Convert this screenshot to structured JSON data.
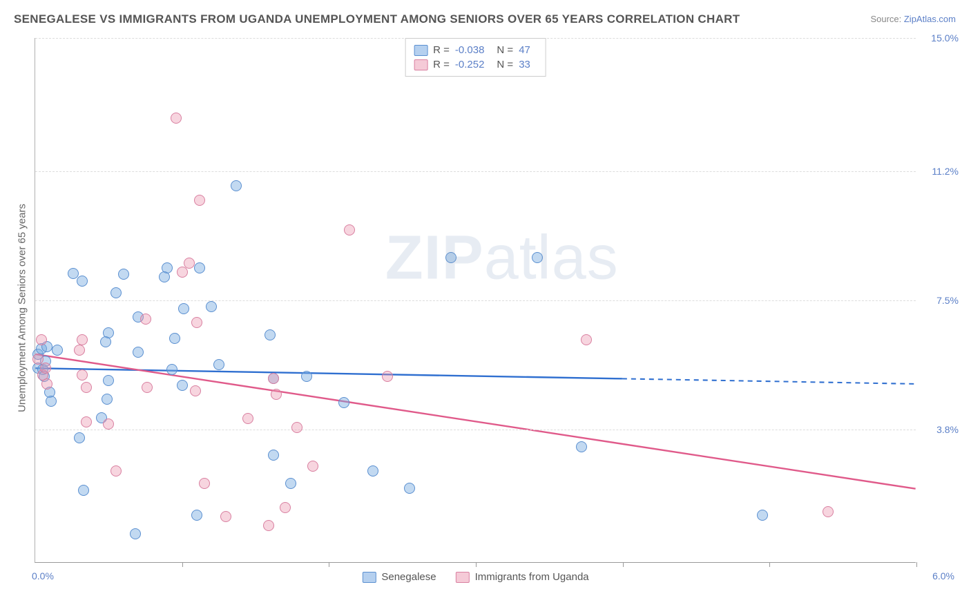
{
  "title": "SENEGALESE VS IMMIGRANTS FROM UGANDA UNEMPLOYMENT AMONG SENIORS OVER 65 YEARS CORRELATION CHART",
  "source_prefix": "Source: ",
  "source_name": "ZipAtlas.com",
  "watermark_bold": "ZIP",
  "watermark_rest": "atlas",
  "chart": {
    "type": "scatter",
    "background_color": "#ffffff",
    "grid_color": "#dcdcdc",
    "axis_color": "#999999",
    "xlim": [
      0.0,
      6.0
    ],
    "ylim": [
      0.0,
      15.0
    ],
    "x_left_label": "0.0%",
    "x_right_label": "6.0%",
    "y_ticks": [
      3.8,
      7.5,
      11.2,
      15.0
    ],
    "y_tick_labels": [
      "3.8%",
      "7.5%",
      "11.2%",
      "15.0%"
    ],
    "x_ticks": [
      1.0,
      2.0,
      3.0,
      4.0,
      5.0,
      6.0
    ],
    "y_axis_title": "Unemployment Among Seniors over 65 years",
    "marker_size": 16,
    "marker_opacity": 0.45,
    "tick_label_color": "#5b7fc7",
    "tick_label_fontsize": 14,
    "title_fontsize": 17,
    "title_color": "#555555"
  },
  "legend_top": {
    "rows": [
      {
        "series": "s1",
        "r_label": "R =",
        "r_value": "-0.038",
        "n_label": "N =",
        "n_value": "47"
      },
      {
        "series": "s2",
        "r_label": "R =",
        "r_value": "-0.252",
        "n_label": "N =",
        "n_value": "33"
      }
    ]
  },
  "legend_bottom": {
    "items": [
      {
        "series": "s1",
        "label": "Senegalese"
      },
      {
        "series": "s2",
        "label": "Immigrants from Uganda"
      }
    ]
  },
  "series": [
    {
      "id": "s1",
      "fill_color": "rgba(120,170,225,0.45)",
      "stroke_color": "#5a8fd0",
      "line_color": "#2f6fd0",
      "line_width": 2.4,
      "trend_y_at_xmin": 5.55,
      "trend_y_at_xmax": 5.1,
      "solid_until_x": 4.0,
      "points": [
        [
          0.02,
          5.55
        ],
        [
          0.02,
          5.95
        ],
        [
          0.04,
          6.1
        ],
        [
          0.05,
          5.5
        ],
        [
          0.06,
          5.3
        ],
        [
          0.07,
          5.75
        ],
        [
          0.26,
          8.25
        ],
        [
          0.08,
          6.15
        ],
        [
          0.1,
          4.85
        ],
        [
          0.11,
          4.6
        ],
        [
          0.15,
          6.05
        ],
        [
          0.32,
          8.03
        ],
        [
          0.3,
          3.55
        ],
        [
          0.33,
          2.05
        ],
        [
          0.5,
          6.55
        ],
        [
          0.48,
          6.3
        ],
        [
          0.5,
          5.2
        ],
        [
          0.49,
          4.65
        ],
        [
          0.7,
          7.0
        ],
        [
          0.55,
          7.7
        ],
        [
          0.7,
          6.0
        ],
        [
          0.68,
          0.8
        ],
        [
          0.9,
          8.4
        ],
        [
          0.88,
          8.15
        ],
        [
          0.6,
          8.23
        ],
        [
          0.95,
          6.4
        ],
        [
          0.93,
          5.5
        ],
        [
          1.0,
          5.05
        ],
        [
          1.1,
          1.35
        ],
        [
          1.01,
          7.25
        ],
        [
          1.12,
          8.4
        ],
        [
          1.2,
          7.3
        ],
        [
          1.25,
          5.65
        ],
        [
          1.37,
          10.75
        ],
        [
          1.62,
          3.05
        ],
        [
          1.6,
          6.5
        ],
        [
          1.62,
          5.25
        ],
        [
          1.74,
          2.25
        ],
        [
          1.85,
          5.3
        ],
        [
          2.1,
          4.55
        ],
        [
          2.3,
          2.6
        ],
        [
          2.55,
          2.12
        ],
        [
          2.83,
          8.7
        ],
        [
          3.42,
          8.7
        ],
        [
          3.72,
          3.3
        ],
        [
          4.95,
          1.35
        ],
        [
          0.45,
          4.12
        ]
      ]
    },
    {
      "id": "s2",
      "fill_color": "rgba(235,150,175,0.40)",
      "stroke_color": "#d97fa0",
      "line_color": "#e05a8a",
      "line_width": 2.4,
      "trend_y_at_xmin": 5.95,
      "trend_y_at_xmax": 2.1,
      "solid_until_x": 6.0,
      "points": [
        [
          0.02,
          5.8
        ],
        [
          0.05,
          5.35
        ],
        [
          0.08,
          5.1
        ],
        [
          0.04,
          6.35
        ],
        [
          0.07,
          5.55
        ],
        [
          0.3,
          6.05
        ],
        [
          0.32,
          6.35
        ],
        [
          0.32,
          5.35
        ],
        [
          0.35,
          5.0
        ],
        [
          0.35,
          4.0
        ],
        [
          0.5,
          3.95
        ],
        [
          0.55,
          2.6
        ],
        [
          0.75,
          6.95
        ],
        [
          0.76,
          5.0
        ],
        [
          1.0,
          8.28
        ],
        [
          0.96,
          12.7
        ],
        [
          1.05,
          8.55
        ],
        [
          1.09,
          4.9
        ],
        [
          1.12,
          10.35
        ],
        [
          1.15,
          2.25
        ],
        [
          1.1,
          6.85
        ],
        [
          1.3,
          1.3
        ],
        [
          1.45,
          4.1
        ],
        [
          1.62,
          5.25
        ],
        [
          1.59,
          1.05
        ],
        [
          1.64,
          4.8
        ],
        [
          1.7,
          1.55
        ],
        [
          1.78,
          3.85
        ],
        [
          2.14,
          9.5
        ],
        [
          1.89,
          2.75
        ],
        [
          2.4,
          5.3
        ],
        [
          3.75,
          6.35
        ],
        [
          5.4,
          1.45
        ]
      ]
    }
  ]
}
